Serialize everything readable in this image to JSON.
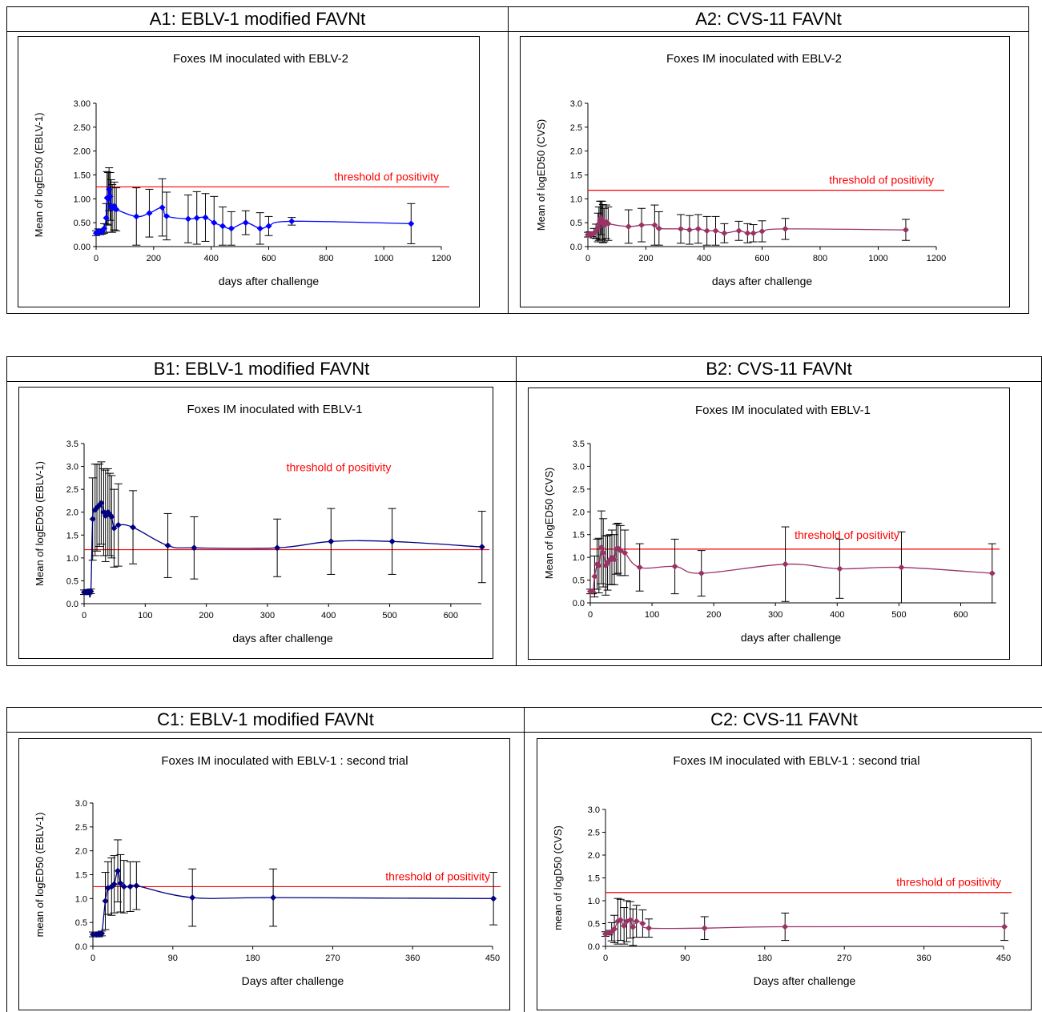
{
  "rows": [
    {
      "panels": [
        {
          "header": "A1: EBLV-1 modified FAVNt",
          "chart_data": {
            "type": "line",
            "title": "Foxes IM inoculated with EBLV-2",
            "xlabel": "days after challenge",
            "ylabel": "Mean of logED50 (EBLV-1)",
            "xlim": [
              0,
              1200
            ],
            "ylim": [
              0,
              3
            ],
            "xticks": [
              0,
              200,
              400,
              600,
              800,
              1000,
              1200
            ],
            "yticks": [
              0,
              0.5,
              1,
              1.5,
              2,
              2.5,
              3
            ],
            "ytick_labels": [
              "0.00",
              "0.50",
              "1.00",
              "1.50",
              "2.00",
              "2.50",
              "3.00"
            ],
            "threshold": 1.25,
            "threshold_label": "threshold of positivity",
            "color": "#0000ff",
            "marker_color": "#0000ff",
            "grid": false,
            "x": [
              0,
              7,
              14,
              21,
              28,
              35,
              38,
              42,
              45,
              49,
              52,
              56,
              63,
              70,
              140,
              185,
              230,
              245,
              320,
              350,
              380,
              410,
              440,
              470,
              520,
              570,
              600,
              680,
              1095
            ],
            "y": [
              0.28,
              0.32,
              0.3,
              0.31,
              0.38,
              0.6,
              1.02,
              1.0,
              1.2,
              1.05,
              0.85,
              0.8,
              0.85,
              0.78,
              0.63,
              0.7,
              0.82,
              0.64,
              0.58,
              0.6,
              0.61,
              0.5,
              0.43,
              0.38,
              0.5,
              0.38,
              0.43,
              0.53,
              0.48
            ],
            "err": [
              0.05,
              0.05,
              0.05,
              0.05,
              0.1,
              0.3,
              0.55,
              0.55,
              0.45,
              0.5,
              0.55,
              0.5,
              0.5,
              0.45,
              0.6,
              0.5,
              0.6,
              0.5,
              0.5,
              0.55,
              0.5,
              0.55,
              0.4,
              0.35,
              0.25,
              0.33,
              0.2,
              0.08,
              0.42
            ]
          }
        },
        {
          "header": "A2: CVS-11 FAVNt",
          "chart_data": {
            "type": "line",
            "title": "Foxes IM inoculated with EBLV-2",
            "xlabel": "days after challenge",
            "ylabel": "Mean of logED50 (CVS)",
            "xlim": [
              0,
              1200
            ],
            "ylim": [
              0,
              3
            ],
            "xticks": [
              0,
              200,
              400,
              600,
              800,
              1000,
              1200
            ],
            "yticks": [
              0,
              0.5,
              1,
              1.5,
              2,
              2.5,
              3
            ],
            "ytick_labels": [
              "0.0",
              "0.5",
              "1.0",
              "1.5",
              "2.0",
              "2.5",
              "3.0"
            ],
            "threshold": 1.18,
            "threshold_label": "threshold of positivity",
            "color": "#993366",
            "marker_color": "#993366",
            "grid": false,
            "x": [
              0,
              7,
              14,
              21,
              28,
              35,
              38,
              42,
              45,
              49,
              52,
              56,
              63,
              70,
              140,
              185,
              230,
              245,
              320,
              350,
              380,
              410,
              440,
              470,
              520,
              550,
              570,
              600,
              680,
              1095
            ],
            "y": [
              0.25,
              0.26,
              0.26,
              0.28,
              0.32,
              0.4,
              0.48,
              0.55,
              0.6,
              0.55,
              0.48,
              0.45,
              0.52,
              0.48,
              0.42,
              0.45,
              0.45,
              0.38,
              0.37,
              0.35,
              0.37,
              0.33,
              0.33,
              0.28,
              0.33,
              0.28,
              0.28,
              0.32,
              0.37,
              0.35
            ],
            "err": [
              0.05,
              0.05,
              0.05,
              0.1,
              0.15,
              0.3,
              0.35,
              0.4,
              0.35,
              0.4,
              0.4,
              0.35,
              0.35,
              0.35,
              0.35,
              0.35,
              0.42,
              0.35,
              0.3,
              0.3,
              0.3,
              0.3,
              0.3,
              0.2,
              0.2,
              0.2,
              0.18,
              0.22,
              0.22,
              0.22
            ]
          }
        }
      ]
    },
    {
      "panels": [
        {
          "header": "B1: EBLV-1 modified FAVNt",
          "chart_data": {
            "type": "line",
            "title": "Foxes IM inoculated with EBLV-1",
            "xlabel": "days after challenge",
            "ylabel": "Mean of logED50 (EBLV-1)",
            "xlim": [
              0,
              650
            ],
            "ylim": [
              0,
              3.5
            ],
            "xticks": [
              0,
              100,
              200,
              300,
              400,
              500,
              600
            ],
            "yticks": [
              0,
              0.5,
              1,
              1.5,
              2,
              2.5,
              3,
              3.5
            ],
            "ytick_labels": [
              "0.0",
              "0.5",
              "1.0",
              "1.5",
              "2.0",
              "2.5",
              "3.0",
              "3.5"
            ],
            "threshold": 1.18,
            "threshold_label": "threshold of positivity",
            "color": "#000080",
            "marker_color": "#000080",
            "grid": false,
            "x": [
              0,
              4,
              7,
              11,
              14,
              18,
              21,
              25,
              28,
              32,
              35,
              39,
              42,
              45,
              49,
              56,
              80,
              137,
              180,
              316,
              404,
              504,
              651
            ],
            "y": [
              0.25,
              0.25,
              0.26,
              0.27,
              1.85,
              2.05,
              2.1,
              2.15,
              2.2,
              2.0,
              1.92,
              2.0,
              1.95,
              1.9,
              1.65,
              1.72,
              1.67,
              1.27,
              1.22,
              1.22,
              1.36,
              1.36,
              1.24
            ],
            "err": [
              0.05,
              0.05,
              0.05,
              0.05,
              0.9,
              1.0,
              0.95,
              0.9,
              0.9,
              0.95,
              1.0,
              0.95,
              0.9,
              0.9,
              0.85,
              0.9,
              0.8,
              0.7,
              0.68,
              0.63,
              0.72,
              0.72,
              0.78
            ]
          }
        },
        {
          "header": "B2: CVS-11 FAVNt",
          "chart_data": {
            "type": "line",
            "title": "Foxes IM inoculated with EBLV-1",
            "xlabel": "days after challenge",
            "ylabel": "Mean of logED50 (CVS)",
            "xlim": [
              0,
              650
            ],
            "ylim": [
              0,
              3.5
            ],
            "xticks": [
              0,
              100,
              200,
              300,
              400,
              500,
              600
            ],
            "yticks": [
              0,
              0.5,
              1,
              1.5,
              2,
              2.5,
              3,
              3.5
            ],
            "ytick_labels": [
              "0.0",
              "0.5",
              "1.0",
              "1.5",
              "2.0",
              "2.5",
              "3.0",
              "3.5"
            ],
            "threshold": 1.18,
            "threshold_label": "threshold of positivity",
            "color": "#993366",
            "marker_color": "#993366",
            "grid": false,
            "x": [
              0,
              4,
              7,
              11,
              14,
              18,
              21,
              25,
              28,
              32,
              35,
              39,
              42,
              45,
              49,
              56,
              80,
              137,
              180,
              316,
              404,
              504,
              651
            ],
            "y": [
              0.25,
              0.25,
              0.58,
              0.85,
              0.82,
              1.22,
              1.1,
              0.82,
              0.88,
              0.95,
              1.0,
              0.95,
              1.18,
              1.2,
              1.15,
              1.1,
              0.78,
              0.8,
              0.65,
              0.85,
              0.75,
              0.78,
              0.65
            ],
            "err": [
              0.05,
              0.05,
              0.45,
              0.55,
              0.6,
              0.8,
              0.75,
              0.65,
              0.6,
              0.55,
              0.6,
              0.55,
              0.55,
              0.55,
              0.55,
              0.5,
              0.52,
              0.6,
              0.5,
              0.82,
              0.65,
              0.78,
              0.65
            ]
          }
        }
      ]
    },
    {
      "panels": [
        {
          "header": "C1: EBLV-1 modified FAVNt",
          "chart_data": {
            "type": "line",
            "title": "Foxes IM inoculated with EBLV-1 : second trial",
            "xlabel": "Days after challenge",
            "ylabel": "mean of logED50 (EBLV-1)",
            "xlim": [
              0,
              450
            ],
            "ylim": [
              0,
              3
            ],
            "xticks": [
              0,
              90,
              180,
              270,
              360,
              450
            ],
            "yticks": [
              0,
              0.5,
              1,
              1.5,
              2,
              2.5,
              3
            ],
            "ytick_labels": [
              "0.0",
              "0.5",
              "1.0",
              "1.5",
              "2.0",
              "2.5",
              "3.0"
            ],
            "threshold": 1.25,
            "threshold_label": "threshold of positivity",
            "color": "#000080",
            "marker_color": "#000080",
            "grid": false,
            "x": [
              0,
              4,
              7,
              10,
              14,
              17,
              21,
              24,
              28,
              31,
              35,
              42,
              49,
              112,
              203,
              451
            ],
            "y": [
              0.25,
              0.25,
              0.25,
              0.27,
              0.95,
              1.22,
              1.25,
              1.3,
              1.58,
              1.32,
              1.25,
              1.25,
              1.27,
              1.02,
              1.02,
              1.0
            ],
            "err": [
              0.05,
              0.05,
              0.05,
              0.05,
              0.6,
              0.55,
              0.6,
              0.6,
              0.65,
              0.6,
              0.55,
              0.52,
              0.5,
              0.6,
              0.6,
              0.55
            ]
          }
        },
        {
          "header": "C2: CVS-11 FAVNt",
          "chart_data": {
            "type": "line",
            "title": "Foxes IM inoculated with EBLV-1 : second trial",
            "xlabel": "Days after challenge",
            "ylabel": "mean of logD50 (CVS)",
            "xlim": [
              0,
              450
            ],
            "ylim": [
              0,
              3
            ],
            "xticks": [
              0,
              90,
              180,
              270,
              360,
              450
            ],
            "yticks": [
              0,
              0.5,
              1,
              1.5,
              2,
              2.5,
              3
            ],
            "ytick_labels": [
              "0.0",
              "0.5",
              "1.0",
              "1.5",
              "2.0",
              "2.5",
              "3.0"
            ],
            "threshold": 1.18,
            "threshold_label": "threshold of positivity",
            "color": "#993366",
            "marker_color": "#993366",
            "grid": false,
            "x": [
              0,
              4,
              7,
              10,
              14,
              17,
              21,
              24,
              28,
              31,
              35,
              42,
              49,
              112,
              203,
              451
            ],
            "y": [
              0.27,
              0.3,
              0.32,
              0.38,
              0.55,
              0.58,
              0.45,
              0.55,
              0.58,
              0.42,
              0.55,
              0.5,
              0.4,
              0.4,
              0.43,
              0.43
            ],
            "err": [
              0.05,
              0.05,
              0.2,
              0.3,
              0.5,
              0.45,
              0.4,
              0.45,
              0.4,
              0.4,
              0.35,
              0.3,
              0.2,
              0.25,
              0.3,
              0.3
            ]
          }
        }
      ]
    }
  ]
}
